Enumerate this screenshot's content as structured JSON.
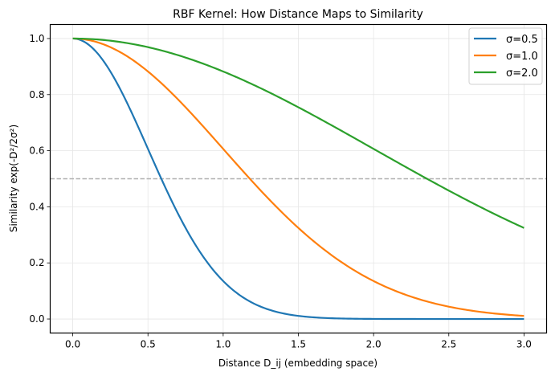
{
  "chart_data": {
    "type": "line",
    "title": "RBF Kernel: How Distance Maps to Similarity",
    "xlabel": "Distance D_ij (embedding space)",
    "ylabel": "Similarity exp(-D²/2σ²)",
    "xlim": [
      -0.15,
      3.15
    ],
    "ylim": [
      -0.05,
      1.05
    ],
    "x_ticks": [
      "0.0",
      "0.5",
      "1.0",
      "1.5",
      "2.0",
      "2.5",
      "3.0"
    ],
    "x_tick_values": [
      0,
      0.5,
      1.0,
      1.5,
      2.0,
      2.5,
      3.0
    ],
    "y_ticks": [
      "0.0",
      "0.2",
      "0.4",
      "0.6",
      "0.8",
      "1.0"
    ],
    "y_tick_values": [
      0,
      0.2,
      0.4,
      0.6,
      0.8,
      1.0
    ],
    "grid": true,
    "legend_position": "top-right",
    "x_range": [
      0,
      3
    ],
    "series": [
      {
        "name": "σ=0.5",
        "sigma": 0.5,
        "color": "#1f77b4"
      },
      {
        "name": "σ=1.0",
        "sigma": 1.0,
        "color": "#ff7f0e"
      },
      {
        "name": "σ=2.0",
        "sigma": 2.0,
        "color": "#2ca02c"
      }
    ],
    "reference_line": {
      "y": 0.5,
      "style": "dashed",
      "color": "#b0b0b0"
    }
  }
}
